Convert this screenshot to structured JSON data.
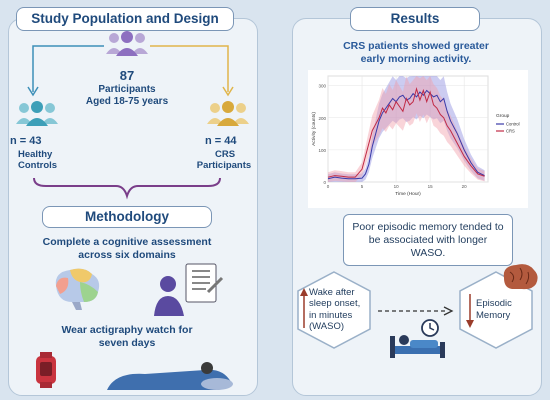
{
  "left": {
    "title": "Study Population and Design",
    "total": "87",
    "participants": "Participants",
    "age": "Aged 18-75 years",
    "healthy_n": "n = 43",
    "healthy_label_1": "Healthy",
    "healthy_label_2": "Controls",
    "crs_n": "n = 44",
    "crs_label_1": "CRS",
    "crs_label_2": "Participants",
    "methodology_title": "Methodology",
    "method_1_line1": "Complete a cognitive assessment",
    "method_1_line2": "across six domains",
    "method_2_line1": "Wear actigraphy watch for",
    "method_2_line2": "seven days"
  },
  "right": {
    "title": "Results",
    "finding_1_line1": "CRS patients showed greater",
    "finding_1_line2": "early morning activity.",
    "finding_2": "Poor episodic memory tended to be associated with longer WASO.",
    "waso_label": "Wake after sleep onset, in minutes (WASO)",
    "memory_label_1": "Episodic",
    "memory_label_2": "Memory"
  },
  "chart_data": {
    "type": "line",
    "xlabel": "Time (Hour)",
    "ylabel": "Activity (counts)",
    "legend_title": "Group",
    "legend_position": "right",
    "x_ticks": [
      0,
      5,
      10,
      15,
      20
    ],
    "y_ticks": [
      0,
      100,
      200,
      300
    ],
    "xlim": [
      0,
      23.5
    ],
    "ylim": [
      0,
      330
    ],
    "x": [
      0,
      1,
      2,
      3,
      4,
      5,
      5.5,
      6,
      6.5,
      7,
      7.5,
      8,
      8.5,
      9,
      9.5,
      10,
      10.5,
      11,
      11.5,
      12,
      12.5,
      13,
      13.5,
      14,
      14.5,
      15,
      15.5,
      16,
      16.5,
      17,
      17.5,
      18,
      19,
      20,
      21,
      22,
      23
    ],
    "series": [
      {
        "name": "Control",
        "color": "#3a3aa8",
        "band_color": "#8f8fe0",
        "values": [
          10,
          15,
          12,
          10,
          10,
          12,
          25,
          55,
          110,
          150,
          190,
          215,
          230,
          245,
          260,
          250,
          265,
          270,
          255,
          260,
          275,
          265,
          280,
          270,
          285,
          275,
          265,
          270,
          250,
          260,
          220,
          190,
          150,
          100,
          60,
          30,
          20
        ]
      },
      {
        "name": "CRS",
        "color": "#c02a45",
        "band_color": "#f2a0aa",
        "values": [
          15,
          20,
          18,
          15,
          15,
          40,
          80,
          120,
          160,
          180,
          200,
          230,
          215,
          240,
          225,
          250,
          235,
          220,
          260,
          240,
          250,
          290,
          255,
          285,
          250,
          280,
          240,
          230,
          210,
          200,
          175,
          160,
          120,
          80,
          50,
          25,
          18
        ]
      }
    ]
  },
  "colors": {
    "accent": "#1f4a7c",
    "control": "#3a3aa8",
    "crs": "#c02a45",
    "arrow_left": "#3d8fb8",
    "arrow_right": "#e0b54a",
    "brace": "#7a3e8a"
  }
}
